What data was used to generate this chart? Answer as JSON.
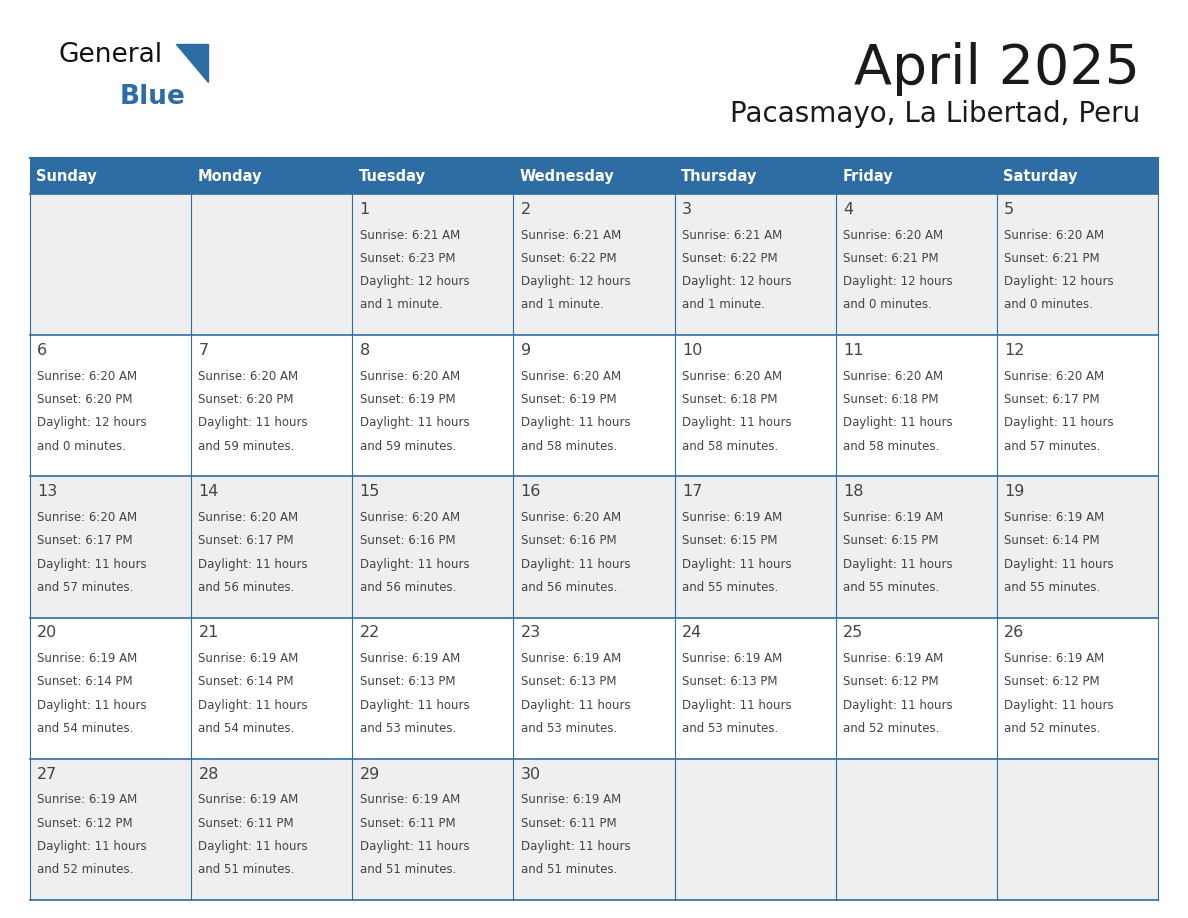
{
  "title": "April 2025",
  "subtitle": "Pacasmayo, La Libertad, Peru",
  "header_color": "#2E6DA4",
  "header_text_color": "#FFFFFF",
  "day_names": [
    "Sunday",
    "Monday",
    "Tuesday",
    "Wednesday",
    "Thursday",
    "Friday",
    "Saturday"
  ],
  "cell_bg_even": "#EFEFEF",
  "cell_bg_odd": "#FFFFFF",
  "grid_line_color": "#2E6DA4",
  "text_color": "#444444",
  "title_color": "#1a1a1a",
  "days": [
    {
      "date": 1,
      "col": 2,
      "row": 0,
      "sunrise": "6:21 AM",
      "sunset": "6:23 PM",
      "daylight_hours": 12,
      "daylight_minutes": 1
    },
    {
      "date": 2,
      "col": 3,
      "row": 0,
      "sunrise": "6:21 AM",
      "sunset": "6:22 PM",
      "daylight_hours": 12,
      "daylight_minutes": 1
    },
    {
      "date": 3,
      "col": 4,
      "row": 0,
      "sunrise": "6:21 AM",
      "sunset": "6:22 PM",
      "daylight_hours": 12,
      "daylight_minutes": 1
    },
    {
      "date": 4,
      "col": 5,
      "row": 0,
      "sunrise": "6:20 AM",
      "sunset": "6:21 PM",
      "daylight_hours": 12,
      "daylight_minutes": 0
    },
    {
      "date": 5,
      "col": 6,
      "row": 0,
      "sunrise": "6:20 AM",
      "sunset": "6:21 PM",
      "daylight_hours": 12,
      "daylight_minutes": 0
    },
    {
      "date": 6,
      "col": 0,
      "row": 1,
      "sunrise": "6:20 AM",
      "sunset": "6:20 PM",
      "daylight_hours": 12,
      "daylight_minutes": 0
    },
    {
      "date": 7,
      "col": 1,
      "row": 1,
      "sunrise": "6:20 AM",
      "sunset": "6:20 PM",
      "daylight_hours": 11,
      "daylight_minutes": 59
    },
    {
      "date": 8,
      "col": 2,
      "row": 1,
      "sunrise": "6:20 AM",
      "sunset": "6:19 PM",
      "daylight_hours": 11,
      "daylight_minutes": 59
    },
    {
      "date": 9,
      "col": 3,
      "row": 1,
      "sunrise": "6:20 AM",
      "sunset": "6:19 PM",
      "daylight_hours": 11,
      "daylight_minutes": 58
    },
    {
      "date": 10,
      "col": 4,
      "row": 1,
      "sunrise": "6:20 AM",
      "sunset": "6:18 PM",
      "daylight_hours": 11,
      "daylight_minutes": 58
    },
    {
      "date": 11,
      "col": 5,
      "row": 1,
      "sunrise": "6:20 AM",
      "sunset": "6:18 PM",
      "daylight_hours": 11,
      "daylight_minutes": 58
    },
    {
      "date": 12,
      "col": 6,
      "row": 1,
      "sunrise": "6:20 AM",
      "sunset": "6:17 PM",
      "daylight_hours": 11,
      "daylight_minutes": 57
    },
    {
      "date": 13,
      "col": 0,
      "row": 2,
      "sunrise": "6:20 AM",
      "sunset": "6:17 PM",
      "daylight_hours": 11,
      "daylight_minutes": 57
    },
    {
      "date": 14,
      "col": 1,
      "row": 2,
      "sunrise": "6:20 AM",
      "sunset": "6:17 PM",
      "daylight_hours": 11,
      "daylight_minutes": 56
    },
    {
      "date": 15,
      "col": 2,
      "row": 2,
      "sunrise": "6:20 AM",
      "sunset": "6:16 PM",
      "daylight_hours": 11,
      "daylight_minutes": 56
    },
    {
      "date": 16,
      "col": 3,
      "row": 2,
      "sunrise": "6:20 AM",
      "sunset": "6:16 PM",
      "daylight_hours": 11,
      "daylight_minutes": 56
    },
    {
      "date": 17,
      "col": 4,
      "row": 2,
      "sunrise": "6:19 AM",
      "sunset": "6:15 PM",
      "daylight_hours": 11,
      "daylight_minutes": 55
    },
    {
      "date": 18,
      "col": 5,
      "row": 2,
      "sunrise": "6:19 AM",
      "sunset": "6:15 PM",
      "daylight_hours": 11,
      "daylight_minutes": 55
    },
    {
      "date": 19,
      "col": 6,
      "row": 2,
      "sunrise": "6:19 AM",
      "sunset": "6:14 PM",
      "daylight_hours": 11,
      "daylight_minutes": 55
    },
    {
      "date": 20,
      "col": 0,
      "row": 3,
      "sunrise": "6:19 AM",
      "sunset": "6:14 PM",
      "daylight_hours": 11,
      "daylight_minutes": 54
    },
    {
      "date": 21,
      "col": 1,
      "row": 3,
      "sunrise": "6:19 AM",
      "sunset": "6:14 PM",
      "daylight_hours": 11,
      "daylight_minutes": 54
    },
    {
      "date": 22,
      "col": 2,
      "row": 3,
      "sunrise": "6:19 AM",
      "sunset": "6:13 PM",
      "daylight_hours": 11,
      "daylight_minutes": 53
    },
    {
      "date": 23,
      "col": 3,
      "row": 3,
      "sunrise": "6:19 AM",
      "sunset": "6:13 PM",
      "daylight_hours": 11,
      "daylight_minutes": 53
    },
    {
      "date": 24,
      "col": 4,
      "row": 3,
      "sunrise": "6:19 AM",
      "sunset": "6:13 PM",
      "daylight_hours": 11,
      "daylight_minutes": 53
    },
    {
      "date": 25,
      "col": 5,
      "row": 3,
      "sunrise": "6:19 AM",
      "sunset": "6:12 PM",
      "daylight_hours": 11,
      "daylight_minutes": 52
    },
    {
      "date": 26,
      "col": 6,
      "row": 3,
      "sunrise": "6:19 AM",
      "sunset": "6:12 PM",
      "daylight_hours": 11,
      "daylight_minutes": 52
    },
    {
      "date": 27,
      "col": 0,
      "row": 4,
      "sunrise": "6:19 AM",
      "sunset": "6:12 PM",
      "daylight_hours": 11,
      "daylight_minutes": 52
    },
    {
      "date": 28,
      "col": 1,
      "row": 4,
      "sunrise": "6:19 AM",
      "sunset": "6:11 PM",
      "daylight_hours": 11,
      "daylight_minutes": 51
    },
    {
      "date": 29,
      "col": 2,
      "row": 4,
      "sunrise": "6:19 AM",
      "sunset": "6:11 PM",
      "daylight_hours": 11,
      "daylight_minutes": 51
    },
    {
      "date": 30,
      "col": 3,
      "row": 4,
      "sunrise": "6:19 AM",
      "sunset": "6:11 PM",
      "daylight_hours": 11,
      "daylight_minutes": 51
    }
  ]
}
